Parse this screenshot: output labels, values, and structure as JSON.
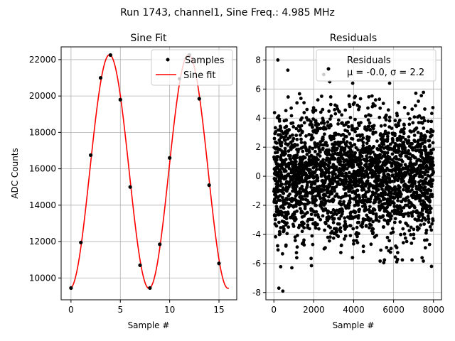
{
  "figure": {
    "suptitle": "Run 1743, channel1, Sine Freq.: 4.985 MHz"
  },
  "chart_data": [
    {
      "type": "line",
      "title": "Sine Fit",
      "xlabel": "Sample #",
      "ylabel": "ADC Counts",
      "xlim": [
        -1,
        16.8
      ],
      "ylim": [
        8800,
        22700
      ],
      "xticks": [
        0,
        5,
        10,
        15
      ],
      "yticks": [
        10000,
        12000,
        14000,
        16000,
        18000,
        20000,
        22000
      ],
      "grid": true,
      "legend": {
        "position": "top-right"
      },
      "series": [
        {
          "name": "Samples",
          "kind": "scatter",
          "color": "#000000",
          "x": [
            0,
            1,
            2,
            3,
            4,
            5,
            6,
            7,
            8,
            9,
            10,
            11,
            12,
            13,
            14,
            15
          ],
          "y": [
            9450,
            11950,
            16750,
            21000,
            22250,
            19800,
            15000,
            10700,
            9450,
            11850,
            16600,
            20950,
            22250,
            19850,
            15100,
            10800
          ]
        },
        {
          "name": "Sine fit",
          "kind": "line",
          "color": "#ff0000",
          "model": {
            "offset": 15850,
            "amplitude": 6420,
            "period": 8.01,
            "phase_center": 3.9,
            "x_range": [
              0,
              16
            ]
          }
        }
      ]
    },
    {
      "type": "scatter",
      "title": "Residuals",
      "xlabel": "",
      "ylabel": "",
      "xlim": [
        -400,
        8400
      ],
      "ylim": [
        -8.5,
        8.9
      ],
      "xticks": [
        0,
        2000,
        4000,
        6000,
        8000
      ],
      "yticks": [
        -8,
        -6,
        -4,
        -2,
        0,
        2,
        4,
        6,
        8
      ],
      "xtick_labels_bottom": "Sample #",
      "grid": true,
      "legend": {
        "position": "top-right"
      },
      "series": [
        {
          "name": "Residuals",
          "label_stats": "μ = -0.0, σ = 2.2",
          "color": "#000000",
          "count_estimate": 8000,
          "x_range": [
            0,
            8000
          ],
          "mean": 0.0,
          "std": 2.2,
          "outliers": [
            [
              200,
              8.0
            ],
            [
              700,
              7.3
            ],
            [
              250,
              -7.7
            ],
            [
              450,
              -7.9
            ],
            [
              2500,
              7.0
            ],
            [
              2800,
              6.5
            ],
            [
              3950,
              6.4
            ],
            [
              5800,
              6.4
            ],
            [
              900,
              -6.3
            ],
            [
              7900,
              -6.2
            ]
          ]
        }
      ]
    }
  ],
  "colors": {
    "fit": "#ff0000",
    "points": "#000000",
    "grid": "#b0b0b0"
  }
}
